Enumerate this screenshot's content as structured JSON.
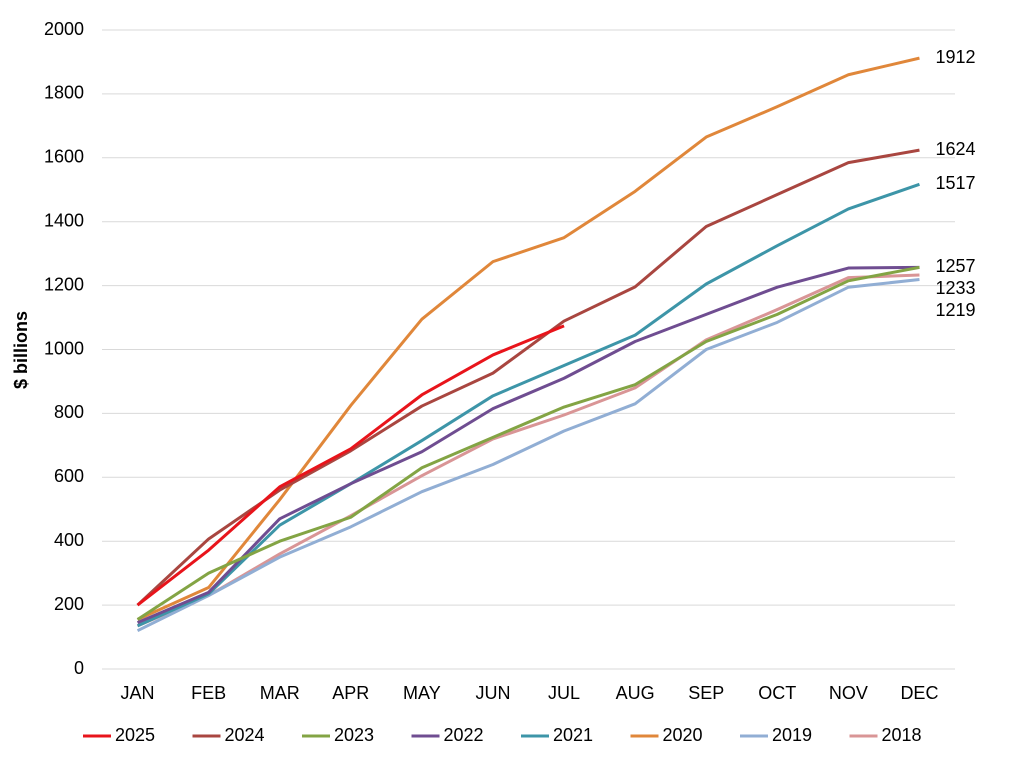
{
  "chart_data": {
    "type": "line",
    "y_label": "$ billions",
    "categories": [
      "JAN",
      "FEB",
      "MAR",
      "APR",
      "MAY",
      "JUN",
      "JUL",
      "AUG",
      "SEP",
      "OCT",
      "NOV",
      "DEC"
    ],
    "ylim": [
      0,
      2000
    ],
    "yticks": [
      0,
      200,
      400,
      600,
      800,
      1000,
      1200,
      1400,
      1600,
      1800,
      2000
    ],
    "grid": true,
    "legend": "bottom",
    "series": [
      {
        "name": "2025",
        "color": "#e8141b",
        "values": [
          200,
          372,
          570,
          689,
          858,
          983,
          1074,
          null,
          null,
          null,
          null,
          null
        ]
      },
      {
        "name": "2024",
        "color": "#a94640",
        "values": [
          200,
          407,
          560,
          683,
          823,
          926,
          1089,
          1196,
          1385,
          1485,
          1585,
          1624
        ],
        "label_last": true
      },
      {
        "name": "2023",
        "color": "#83a444",
        "values": [
          155,
          300,
          400,
          475,
          630,
          725,
          820,
          890,
          1025,
          1110,
          1215,
          1257
        ]
      },
      {
        "name": "2022",
        "color": "#6f4d91",
        "values": [
          145,
          240,
          470,
          580,
          680,
          815,
          910,
          1025,
          1110,
          1195,
          1255,
          1257
        ],
        "label_last": true
      },
      {
        "name": "2021",
        "color": "#3d95a8",
        "values": [
          135,
          235,
          450,
          580,
          715,
          855,
          950,
          1045,
          1205,
          1325,
          1440,
          1517
        ],
        "label_last": true
      },
      {
        "name": "2020",
        "color": "#e0873a",
        "values": [
          155,
          255,
          530,
          825,
          1095,
          1275,
          1350,
          1495,
          1665,
          1760,
          1860,
          1912
        ],
        "label_last": true
      },
      {
        "name": "2019",
        "color": "#91aed4",
        "values": [
          120,
          230,
          350,
          445,
          555,
          640,
          745,
          830,
          1000,
          1085,
          1195,
          1219
        ],
        "label_last": true
      },
      {
        "name": "2018",
        "color": "#d99596",
        "values": [
          135,
          230,
          360,
          480,
          605,
          720,
          795,
          880,
          1030,
          1125,
          1225,
          1233
        ],
        "label_last": true
      }
    ]
  }
}
